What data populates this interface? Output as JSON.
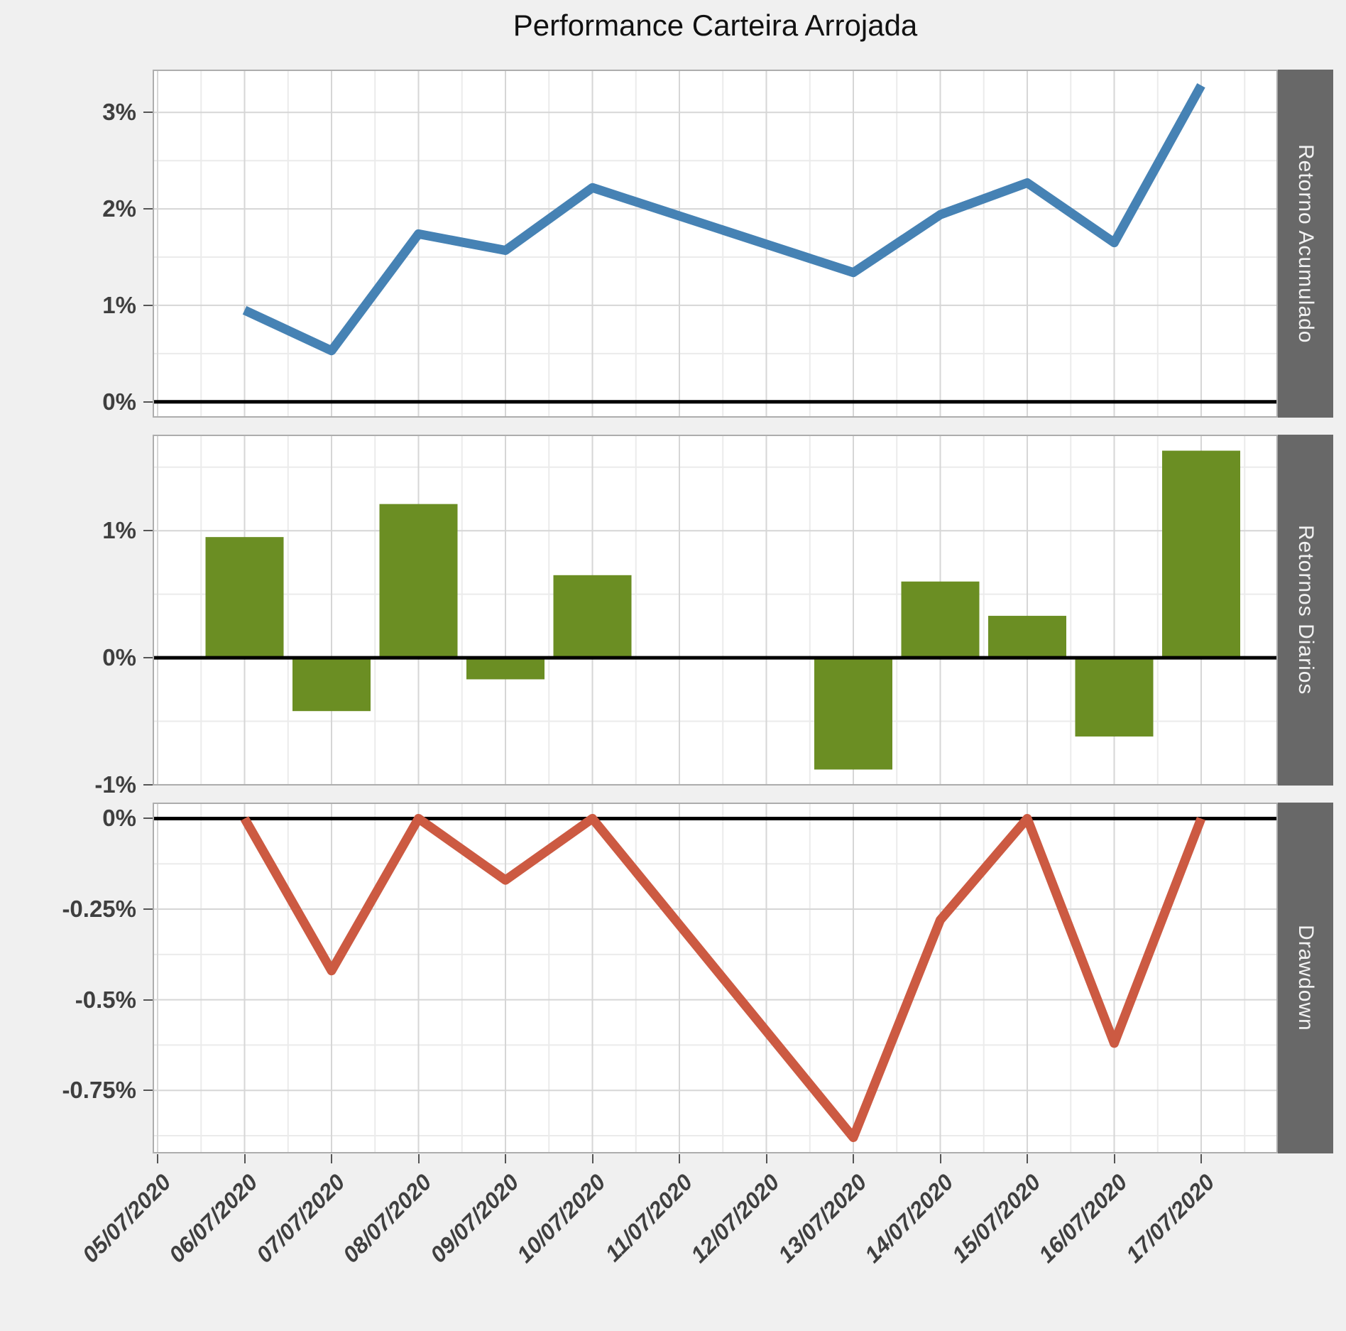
{
  "title": "Performance Carteira Arrojada",
  "colors": {
    "background": "#F0F0F0",
    "panel_background": "#FFFFFF",
    "grid_major": "#D6D6D6",
    "grid_minor": "#EBEBEB",
    "panel_border": "#ADADAD",
    "strip_bg": "#686868",
    "strip_text": "#F2F2F2",
    "axis_text": "#3F3F3F",
    "zero_line": "#000000",
    "tick_mark": "#555555",
    "accent_blue": "#4682B4",
    "accent_green": "#6B8E23",
    "accent_red": "#CC5A42"
  },
  "x_axis": {
    "labels": [
      "05/07/2020",
      "06/07/2020",
      "07/07/2020",
      "08/07/2020",
      "09/07/2020",
      "10/07/2020",
      "11/07/2020",
      "12/07/2020",
      "13/07/2020",
      "14/07/2020",
      "15/07/2020",
      "16/07/2020",
      "17/07/2020"
    ]
  },
  "chart_data": [
    {
      "type": "line",
      "name": "Retorno Acumulado",
      "color": "#4682B4",
      "x": [
        "06/07/2020",
        "07/07/2020",
        "08/07/2020",
        "09/07/2020",
        "10/07/2020",
        "13/07/2020",
        "14/07/2020",
        "15/07/2020",
        "16/07/2020",
        "17/07/2020"
      ],
      "y": [
        0.95,
        0.53,
        1.74,
        1.57,
        2.22,
        1.34,
        1.94,
        2.27,
        1.65,
        3.28
      ],
      "ylim": [
        -0.164,
        3.444
      ],
      "yticks": [
        {
          "value": 3,
          "label": "3%"
        },
        {
          "value": 2,
          "label": "2%"
        },
        {
          "value": 1,
          "label": "1%"
        },
        {
          "value": 0,
          "label": "0%"
        }
      ],
      "zero_line": true,
      "grid": true,
      "legend": "none"
    },
    {
      "type": "bar",
      "name": "Retornos Diarios",
      "color": "#6B8E23",
      "x": [
        "06/07/2020",
        "07/07/2020",
        "08/07/2020",
        "09/07/2020",
        "10/07/2020",
        "13/07/2020",
        "14/07/2020",
        "15/07/2020",
        "16/07/2020",
        "17/07/2020"
      ],
      "y": [
        0.95,
        -0.42,
        1.21,
        -0.17,
        0.65,
        -0.88,
        0.6,
        0.33,
        -0.62,
        1.63
      ],
      "ylim": [
        -1.006,
        1.756
      ],
      "yticks": [
        {
          "value": 1,
          "label": "1%"
        },
        {
          "value": 0,
          "label": "0%"
        },
        {
          "value": -1,
          "label": "-1%"
        }
      ],
      "zero_line": true,
      "grid": true,
      "legend": "none"
    },
    {
      "type": "line",
      "name": "Drawdown",
      "color": "#CC5A42",
      "x": [
        "06/07/2020",
        "07/07/2020",
        "08/07/2020",
        "09/07/2020",
        "10/07/2020",
        "13/07/2020",
        "14/07/2020",
        "15/07/2020",
        "16/07/2020",
        "17/07/2020"
      ],
      "y": [
        0.0,
        -0.42,
        0.0,
        -0.17,
        0.0,
        -0.88,
        -0.28,
        0.0,
        -0.62,
        0.0
      ],
      "ylim": [
        -0.924,
        0.044
      ],
      "yticks": [
        {
          "value": 0,
          "label": "0%"
        },
        {
          "value": -0.25,
          "label": "-0.25%"
        },
        {
          "value": -0.5,
          "label": "-0.5%"
        },
        {
          "value": -0.75,
          "label": "-0.75%"
        }
      ],
      "zero_line": true,
      "grid": true,
      "legend": "none"
    }
  ]
}
